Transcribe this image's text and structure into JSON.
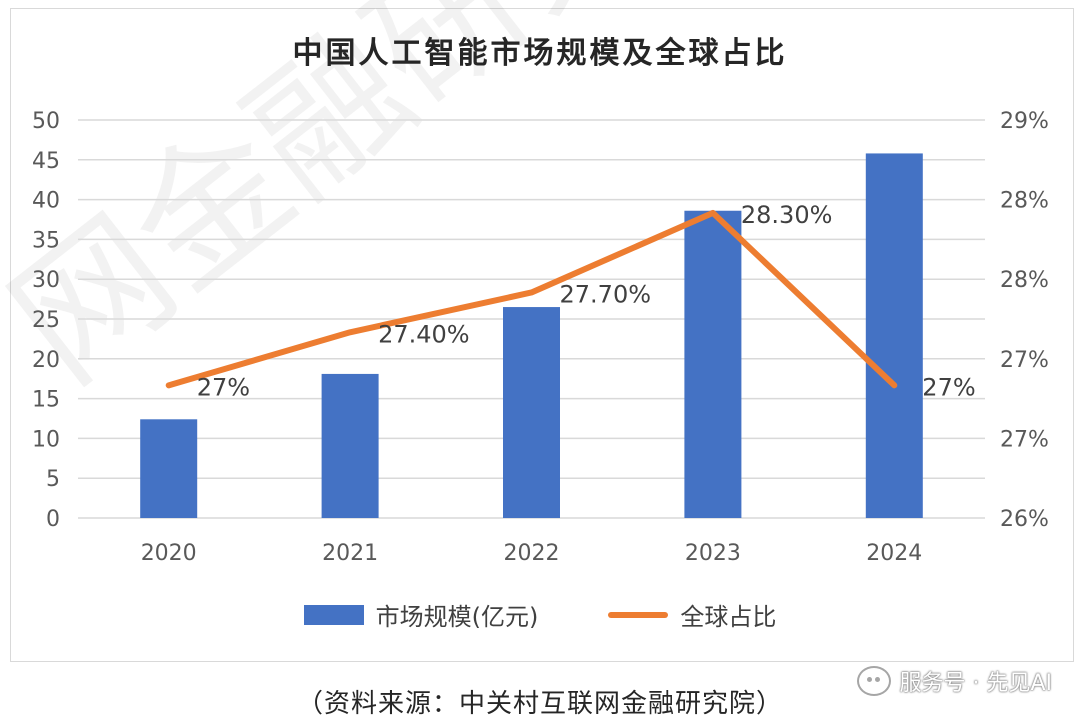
{
  "title": "中国人工智能市场规模及全球占比",
  "source_note": "（资料来源：中关村互联网金融研究院）",
  "badge_text": "服务号 · 先见AI",
  "watermark_text": "网金融研究",
  "chart_data": {
    "type": "bar",
    "title": "中国人工智能市场规模及全球占比",
    "categories": [
      "2020",
      "2021",
      "2022",
      "2023",
      "2024"
    ],
    "series": [
      {
        "name": "市场规模(亿元)",
        "type": "bar",
        "axis": "left",
        "color": "#4472c4",
        "values": [
          12.4,
          18.1,
          26.5,
          38.6,
          45.8
        ]
      },
      {
        "name": "全球占比",
        "type": "line",
        "axis": "right",
        "color": "#ed7d31",
        "values": [
          27.0,
          27.4,
          27.7,
          28.3,
          27.0
        ],
        "data_labels": [
          "27%",
          "27.40%",
          "27.70%",
          "28.30%",
          "27%"
        ]
      }
    ],
    "y_left": {
      "ylim": [
        0,
        50
      ],
      "ticks": [
        "0",
        "5",
        "10",
        "15",
        "20",
        "25",
        "30",
        "35",
        "40",
        "45",
        "50"
      ]
    },
    "y_right": {
      "ylim": [
        26.0,
        29.0
      ],
      "ticks": [
        "26%",
        "27%",
        "27%",
        "28%",
        "28%",
        "29%"
      ]
    },
    "grid": true,
    "legend_placement": "bottom"
  }
}
